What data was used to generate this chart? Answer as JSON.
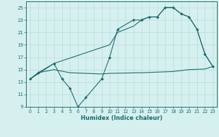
{
  "line1_x": [
    0,
    1,
    3,
    4,
    5,
    6,
    7,
    9,
    10,
    11,
    13,
    14,
    15,
    16,
    17,
    18,
    19,
    20,
    21,
    22,
    23
  ],
  "line1_y": [
    13.5,
    14.5,
    16,
    13.5,
    12,
    9,
    10.5,
    13.5,
    17,
    21.5,
    23,
    23,
    23.5,
    23.5,
    25,
    25,
    24,
    23.5,
    21.5,
    17.5,
    15.5
  ],
  "line2_x": [
    0,
    3,
    10,
    11,
    13,
    14,
    15,
    16,
    17,
    18,
    19,
    20,
    21,
    22,
    23
  ],
  "line2_y": [
    13.5,
    16,
    19,
    21,
    22,
    23,
    23.5,
    23.5,
    25,
    25,
    24,
    23.5,
    21.5,
    17.5,
    15.5
  ],
  "line3_x": [
    0,
    1,
    3,
    5,
    9,
    10,
    14,
    16,
    18,
    20,
    22,
    23
  ],
  "line3_y": [
    13.5,
    14.5,
    15.0,
    14.5,
    14.3,
    14.4,
    14.5,
    14.6,
    14.7,
    15.0,
    15.1,
    15.5
  ],
  "color": "#1a6b6b",
  "bg_color": "#d6f0ef",
  "grid_color": "#b8dada",
  "xlabel": "Humidex (Indice chaleur)",
  "ylim": [
    9,
    26
  ],
  "xlim": [
    -0.5,
    23.5
  ],
  "yticks": [
    9,
    11,
    13,
    15,
    17,
    19,
    21,
    23,
    25
  ],
  "xticks": [
    0,
    1,
    2,
    3,
    4,
    5,
    6,
    7,
    8,
    9,
    10,
    11,
    12,
    13,
    14,
    15,
    16,
    17,
    18,
    19,
    20,
    21,
    22,
    23
  ]
}
